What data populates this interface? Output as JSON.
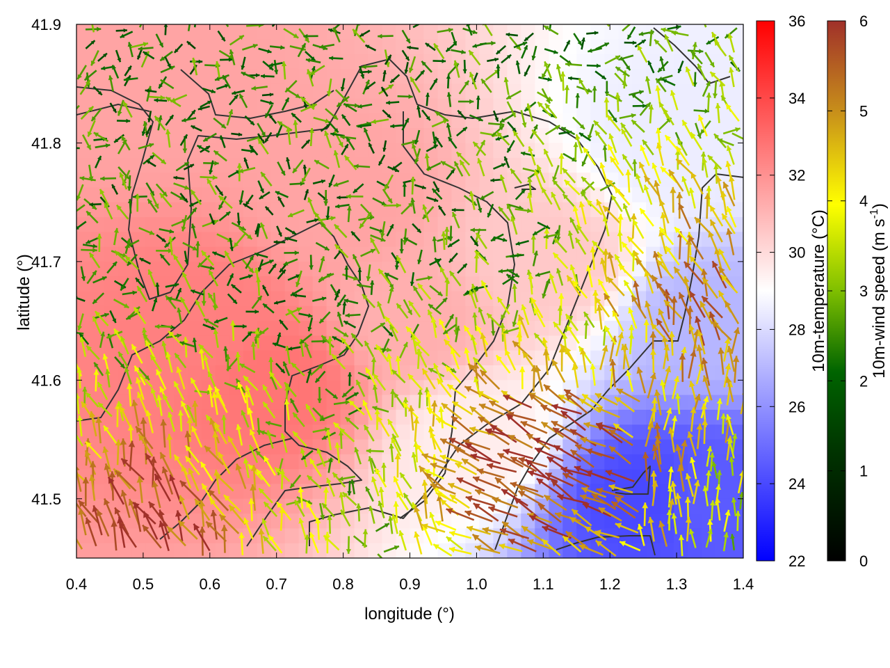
{
  "chart_data": {
    "type": "heatmap",
    "overlay": "wind-vectors",
    "xlabel": "longitude (°)",
    "ylabel": "latitude (°)",
    "xlim": [
      0.4,
      1.4
    ],
    "ylim": [
      41.45,
      41.9
    ],
    "xticks": [
      "0.4",
      "0.5",
      "0.6",
      "0.7",
      "0.8",
      "0.9",
      "1.0",
      "1.1",
      "1.2",
      "1.3",
      "1.4"
    ],
    "yticks": [
      "41.5",
      "41.6",
      "41.7",
      "41.8",
      "41.9"
    ],
    "temperature": {
      "label": "10m-temperature (°C)",
      "range": [
        22,
        36
      ],
      "ticks": [
        "22",
        "24",
        "26",
        "28",
        "30",
        "32",
        "34",
        "36"
      ],
      "colors": [
        "#0000ff",
        "#ffffff",
        "#ff0000"
      ]
    },
    "wind_speed": {
      "label_main": "10m-wind speed (m s",
      "label_sup": "-1",
      "label_end": ")",
      "range": [
        0,
        6
      ],
      "ticks": [
        "0",
        "1",
        "2",
        "3",
        "4",
        "5",
        "6"
      ],
      "colors": [
        "#000000",
        "#006400",
        "#7fbf00",
        "#ffff00",
        "#c8901a",
        "#a0302a"
      ]
    },
    "temperature_field_samples": [
      {
        "lon": 0.5,
        "lat": 41.85,
        "t": 31.5
      },
      {
        "lon": 0.6,
        "lat": 41.65,
        "t": 32.5
      },
      {
        "lon": 0.7,
        "lat": 41.6,
        "t": 32.8
      },
      {
        "lon": 0.8,
        "lat": 41.75,
        "t": 31.5
      },
      {
        "lon": 0.9,
        "lat": 41.65,
        "t": 31.2
      },
      {
        "lon": 1.0,
        "lat": 41.55,
        "t": 29.5
      },
      {
        "lon": 1.1,
        "lat": 41.7,
        "t": 30.5
      },
      {
        "lon": 1.3,
        "lat": 41.8,
        "t": 28.5
      },
      {
        "lon": 1.35,
        "lat": 41.65,
        "t": 27.0
      },
      {
        "lon": 1.25,
        "lat": 41.5,
        "t": 24.0
      },
      {
        "lon": 1.35,
        "lat": 41.5,
        "t": 24.5
      }
    ]
  }
}
